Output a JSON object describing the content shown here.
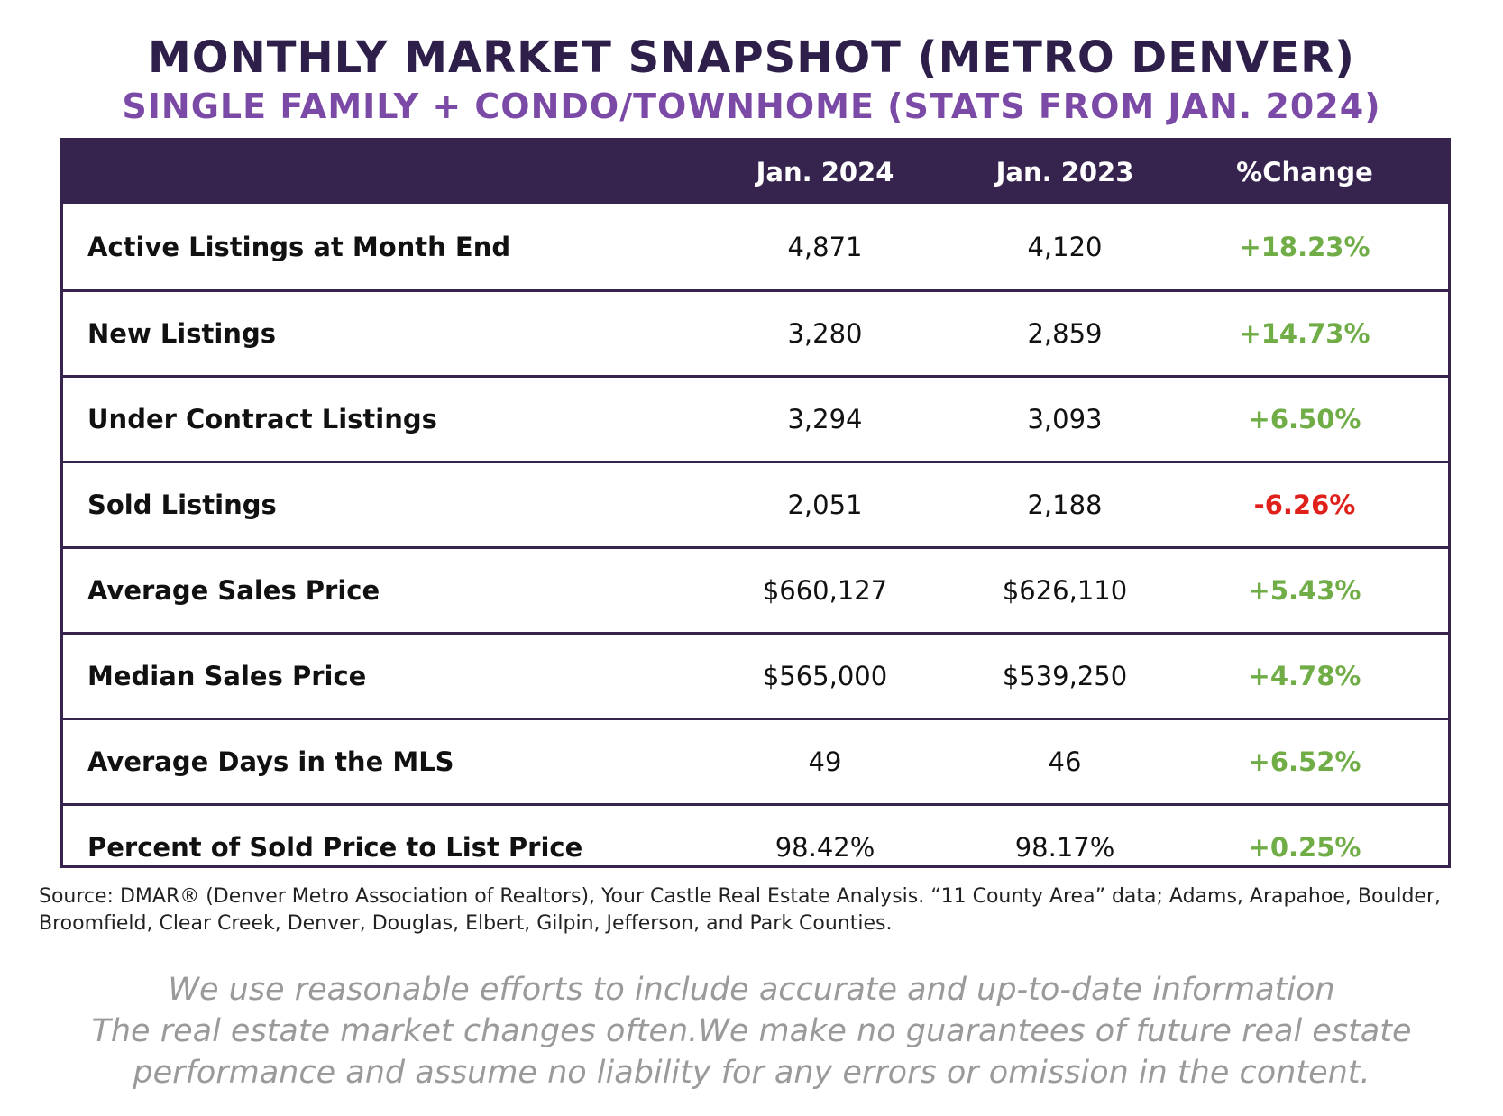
{
  "title": "MONTHLY MARKET SNAPSHOT (METRO DENVER)",
  "subtitle": "SINGLE FAMILY + CONDO/TOWNHOME (STATS FROM JAN. 2024)",
  "colors": {
    "title": "#2e1f4a",
    "subtitle": "#7b4aa6",
    "header_bg": "#36244f",
    "border": "#36244f",
    "positive": "#70ad47",
    "negative": "#e0201b",
    "disclaimer": "#9a9a9a"
  },
  "table": {
    "columns": [
      "Jan. 2024",
      "Jan. 2023",
      "%Change"
    ],
    "rows": [
      {
        "label": "Active Listings at Month End",
        "jan2024": "4,871",
        "jan2023": "4,120",
        "change": "+18.23%",
        "direction": "positive"
      },
      {
        "label": "New Listings",
        "jan2024": "3,280",
        "jan2023": "2,859",
        "change": "+14.73%",
        "direction": "positive"
      },
      {
        "label": "Under Contract Listings",
        "jan2024": "3,294",
        "jan2023": "3,093",
        "change": "+6.50%",
        "direction": "positive"
      },
      {
        "label": "Sold Listings",
        "jan2024": "2,051",
        "jan2023": "2,188",
        "change": "-6.26%",
        "direction": "negative"
      },
      {
        "label": "Average Sales Price",
        "jan2024": "$660,127",
        "jan2023": "$626,110",
        "change": "+5.43%",
        "direction": "positive"
      },
      {
        "label": "Median Sales Price",
        "jan2024": "$565,000",
        "jan2023": "$539,250",
        "change": "+4.78%",
        "direction": "positive"
      },
      {
        "label": "Average Days in the MLS",
        "jan2024": "49",
        "jan2023": "46",
        "change": "+6.52%",
        "direction": "positive"
      },
      {
        "label": "Percent of Sold Price to List Price",
        "jan2024": "98.42%",
        "jan2023": "98.17%",
        "change": "+0.25%",
        "direction": "positive"
      }
    ]
  },
  "source": "Source: DMAR® (Denver Metro Association of Realtors), Your Castle Real Estate Analysis. “11 County Area” data; Adams, Arapahoe, Boulder, Broomfield, Clear Creek, Denver, Douglas, Elbert, Gilpin, Jefferson, and Park Counties.",
  "disclaimer": [
    "We use reasonable efforts to include accurate and up-to-date information",
    "The real estate market changes often.We make no guarantees of future real estate",
    "performance and assume no liability for any errors or omission in the content."
  ]
}
